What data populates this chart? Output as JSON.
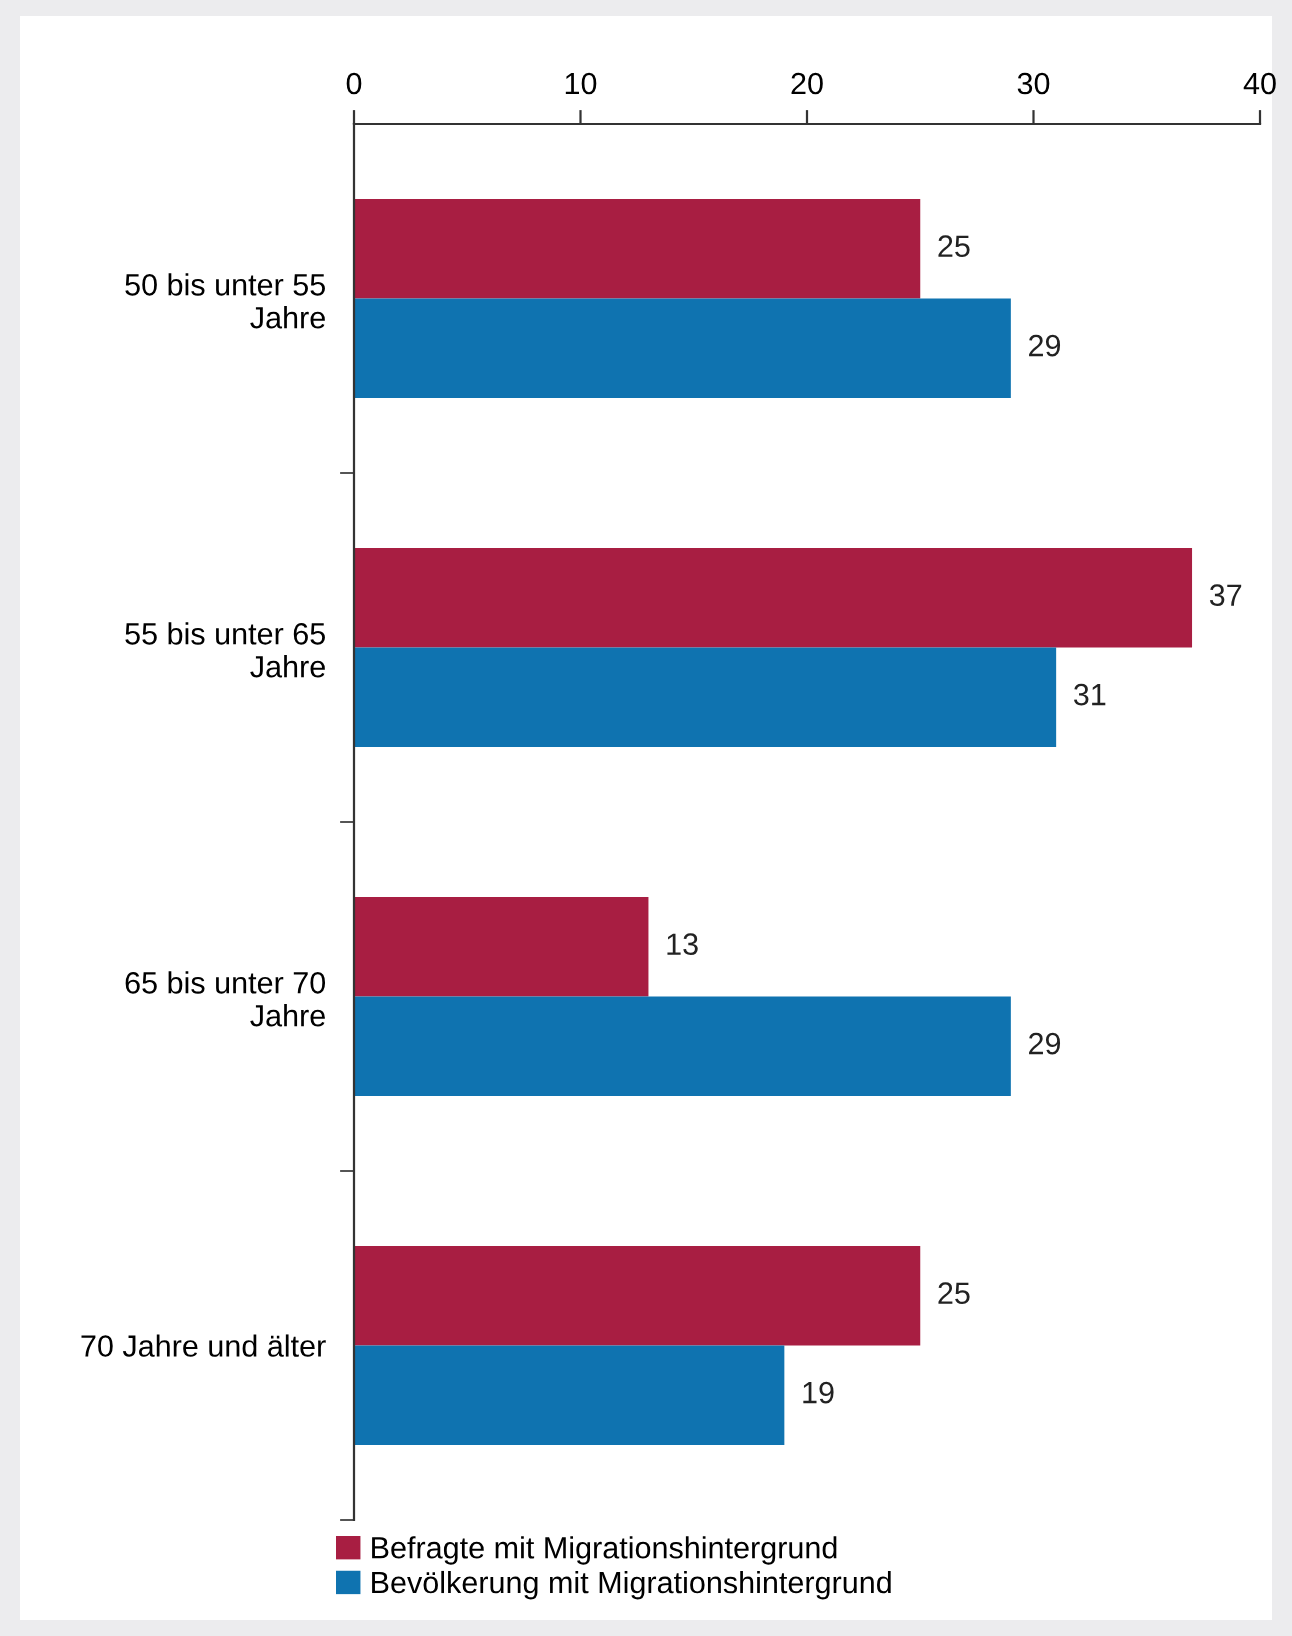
{
  "chart_data": {
    "type": "bar",
    "orientation": "horizontal",
    "categories": [
      "50 bis unter 55 Jahre",
      "55 bis unter 65 Jahre",
      "65 bis unter 70 Jahre",
      "70 Jahre und älter"
    ],
    "series": [
      {
        "name": "Befragte mit Migrationshintergrund",
        "color": "#a81e42",
        "values": [
          25,
          37,
          13,
          25
        ]
      },
      {
        "name": "Bevölkerung mit Migrationshintergrund",
        "color": "#0f73b0",
        "values": [
          29,
          31,
          29,
          19
        ]
      }
    ],
    "xlim": [
      0,
      40
    ],
    "xticks": [
      0,
      10,
      20,
      30,
      40
    ],
    "grid": false,
    "legend": "bottom",
    "data_labels": true
  }
}
